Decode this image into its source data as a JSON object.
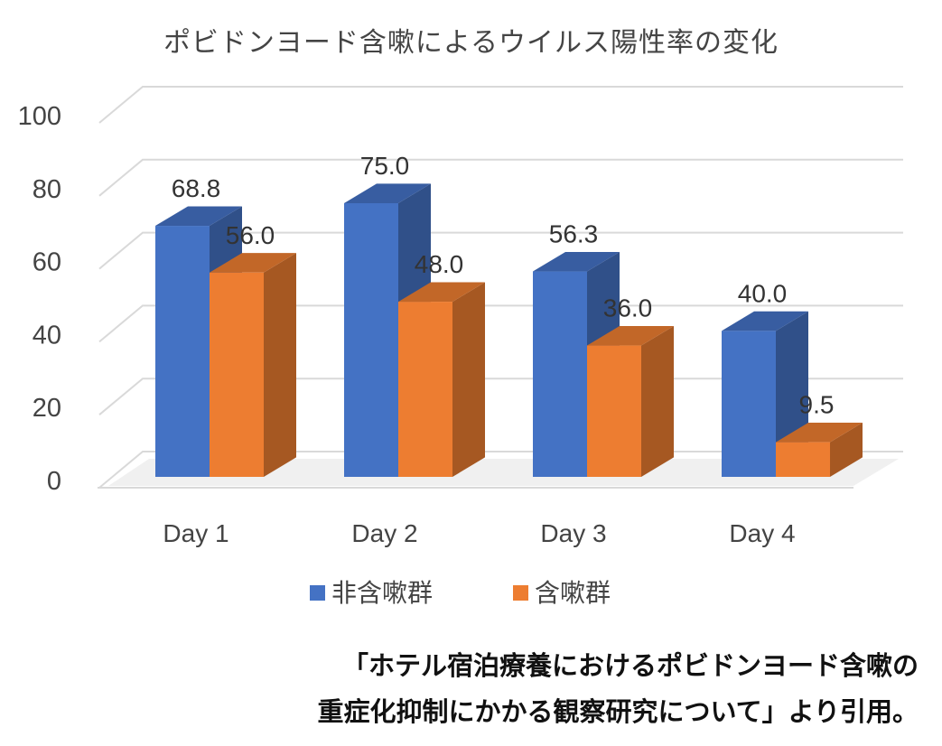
{
  "chart_data": {
    "type": "bar",
    "title": "ポビドンヨード含嗽によるウイルス陽性率の変化",
    "categories": [
      "Day 1",
      "Day 2",
      "Day 3",
      "Day 4"
    ],
    "series": [
      {
        "name": "非含嗽群",
        "values": [
          68.8,
          75.0,
          56.3,
          40.0
        ],
        "labels": [
          "68.8",
          "75.0",
          "56.3",
          "40.0"
        ],
        "color": "#4472C4"
      },
      {
        "name": "含嗽群",
        "values": [
          56.0,
          48.0,
          36.0,
          9.5
        ],
        "labels": [
          "56.0",
          "48.0",
          "36.0",
          "9.5"
        ],
        "color": "#ED7D31"
      }
    ],
    "yticks": [
      "0",
      "20",
      "40",
      "60",
      "80",
      "100"
    ],
    "ylim": [
      0,
      100
    ],
    "grid": true,
    "legend_position": "bottom"
  },
  "caption": {
    "line1": "「ホテル宿泊療養におけるポビドンヨード含嗽の",
    "line2": "重症化抑制にかかる観察研究について」より引用。"
  }
}
